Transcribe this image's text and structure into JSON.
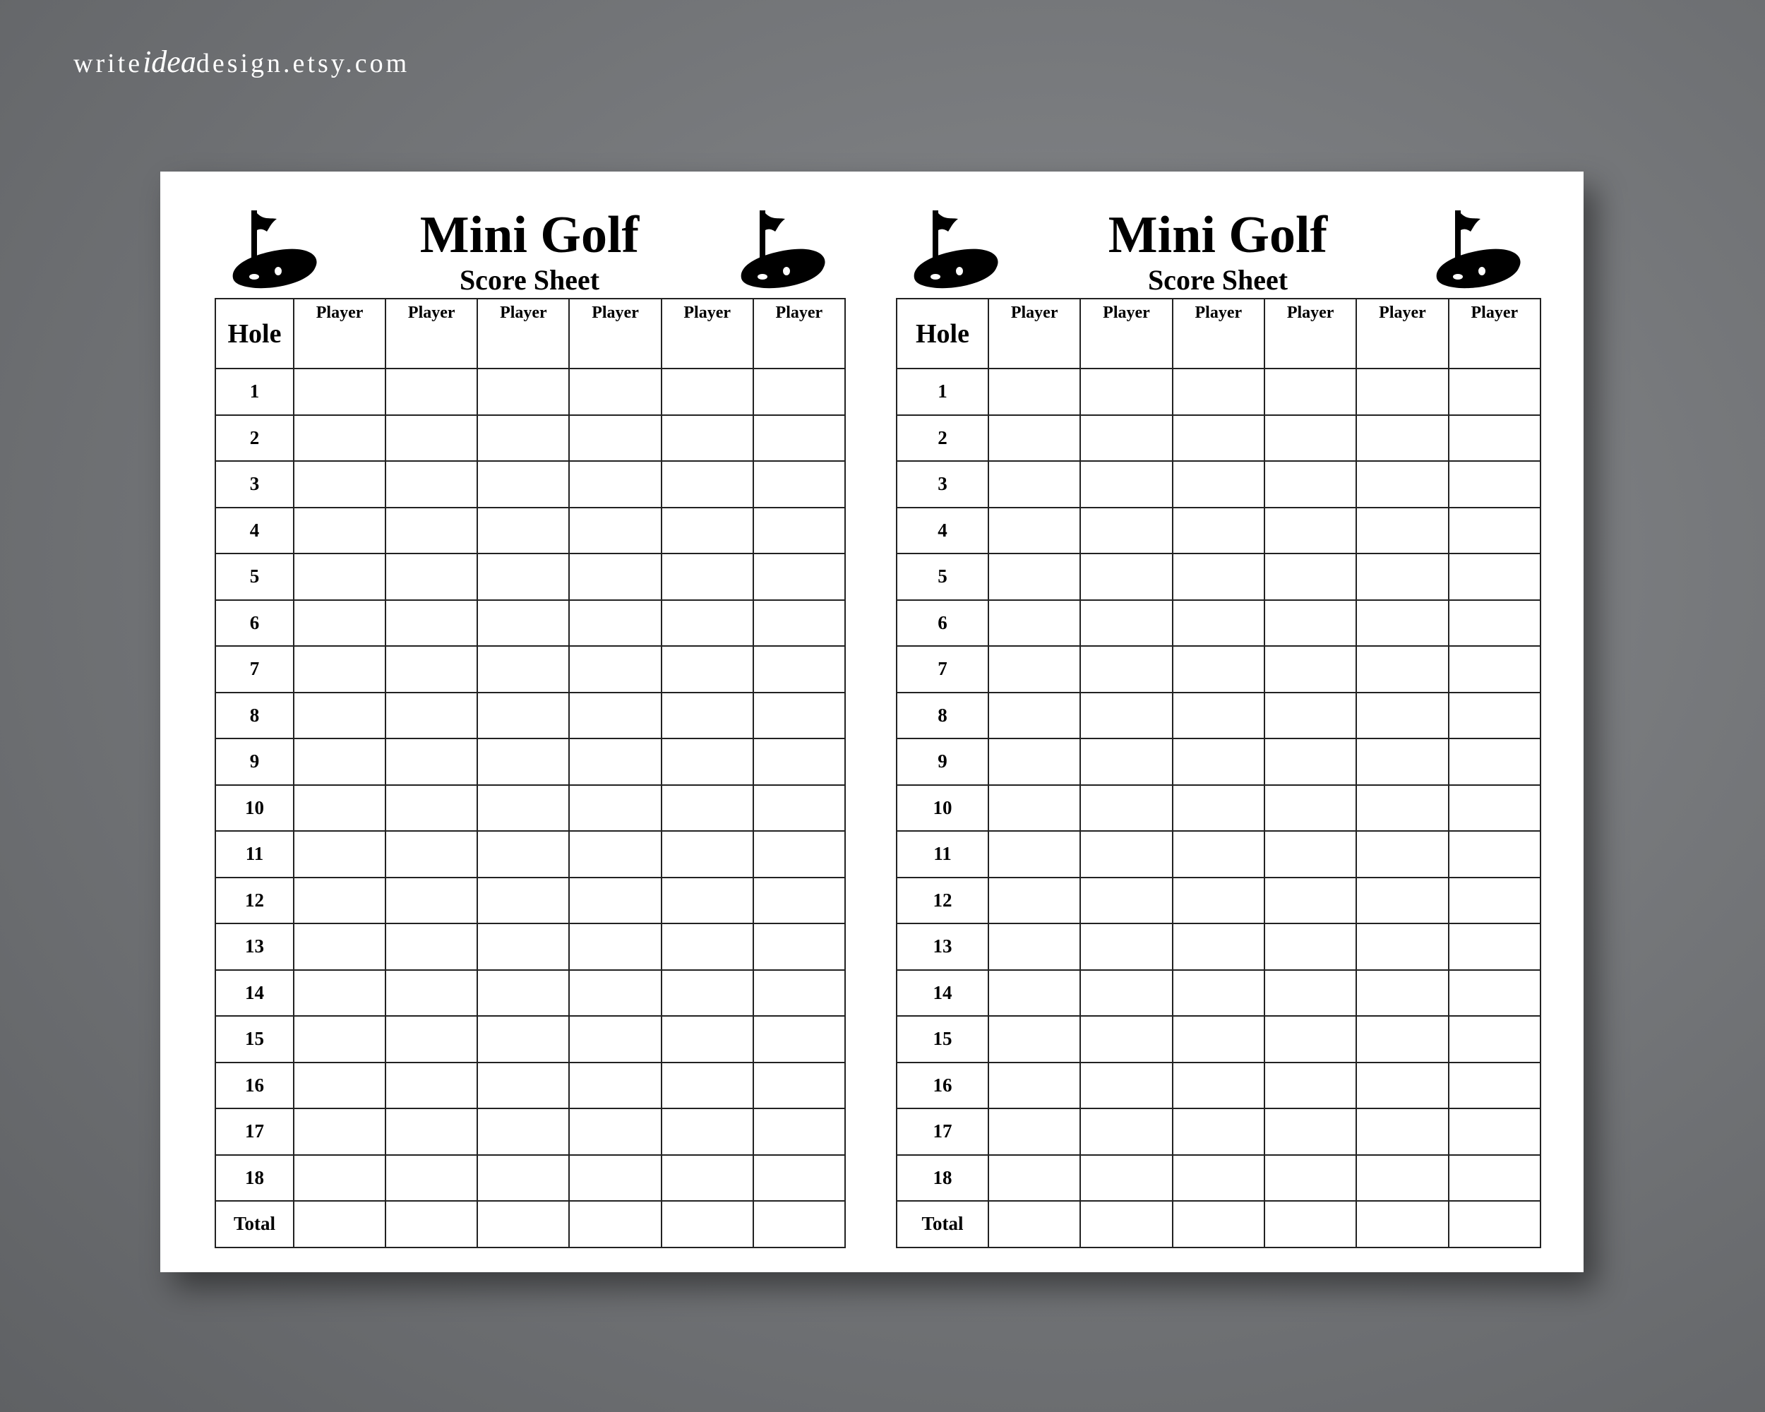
{
  "watermark": {
    "prefix": "write",
    "script": "idea",
    "suffix": "design.etsy.com"
  },
  "sheets": [
    {
      "title": "Mini Golf",
      "subtitle": "Score Sheet",
      "hole_header": "Hole",
      "player_headers": [
        "Player",
        "Player",
        "Player",
        "Player",
        "Player",
        "Player"
      ],
      "rows": [
        "1",
        "2",
        "3",
        "4",
        "5",
        "6",
        "7",
        "8",
        "9",
        "10",
        "11",
        "12",
        "13",
        "14",
        "15",
        "16",
        "17",
        "18",
        "Total"
      ],
      "icons": [
        "golf-flag-icon",
        "golf-flag-icon"
      ]
    },
    {
      "title": "Mini Golf",
      "subtitle": "Score Sheet",
      "hole_header": "Hole",
      "player_headers": [
        "Player",
        "Player",
        "Player",
        "Player",
        "Player",
        "Player"
      ],
      "rows": [
        "1",
        "2",
        "3",
        "4",
        "5",
        "6",
        "7",
        "8",
        "9",
        "10",
        "11",
        "12",
        "13",
        "14",
        "15",
        "16",
        "17",
        "18",
        "Total"
      ],
      "icons": [
        "golf-flag-icon",
        "golf-flag-icon"
      ]
    }
  ],
  "colors": {
    "background": "#76787b",
    "paper": "#ffffff",
    "ink": "#000000"
  }
}
